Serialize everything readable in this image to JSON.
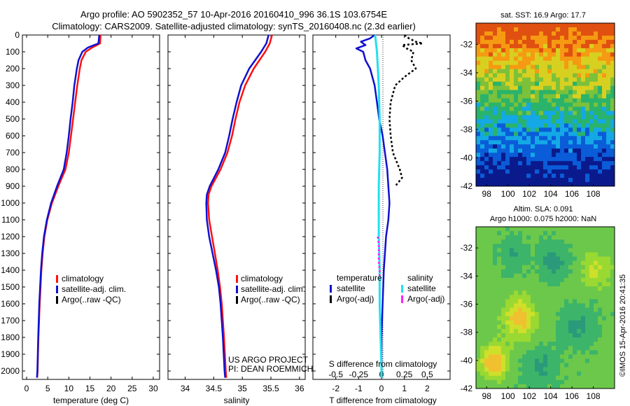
{
  "header": {
    "line1": "Argo profile: AO 5902352_57 10-Apr-2016 20160410_996 36.1S 103.6754E",
    "line2": "Climatology: CARS2009. Satellite-adjusted climatology: synTS_20160408.nc (2.3d earlier)"
  },
  "credits": {
    "project_line1": "US ARGO PROJECT",
    "project_line2": "PI: DEAN ROEMMICH",
    "imos": "©IMOS 15-Apr-2016 20:41:35"
  },
  "colors": {
    "climatology": "#ff1010",
    "satellite_adj": "#1010d0",
    "argo_raw": "#000000",
    "sal_satellite": "#20e0f0",
    "sal_argo_adj": "#ff20ff"
  },
  "chart_data": [
    {
      "type": "line",
      "panel": "temperature",
      "xlabel": "temperature (deg C)",
      "xlim": [
        -1,
        31.5
      ],
      "xticks": [
        0,
        5,
        10,
        15,
        20,
        25,
        30
      ],
      "ylim": [
        2050,
        0
      ],
      "yticks": [
        0,
        100,
        200,
        300,
        400,
        500,
        600,
        700,
        800,
        900,
        1000,
        1100,
        1200,
        1300,
        1400,
        1500,
        1600,
        1700,
        1800,
        1900,
        2000
      ],
      "legend": [
        "climatology",
        "satellite-adj. clim.",
        "Argo(..raw -QC)"
      ],
      "series": [
        {
          "name": "climatology",
          "depth": [
            0,
            50,
            75,
            100,
            150,
            200,
            300,
            400,
            500,
            600,
            700,
            800,
            900,
            1000,
            1100,
            1200,
            1300,
            1400,
            1500,
            1600,
            1800,
            2000,
            2040
          ],
          "values": [
            17.5,
            17.4,
            15.5,
            14.0,
            13.0,
            12.6,
            12.0,
            11.5,
            11.0,
            10.5,
            10.0,
            9.2,
            7.5,
            6.0,
            4.9,
            4.2,
            3.8,
            3.5,
            3.3,
            3.1,
            2.8,
            2.6,
            2.5
          ]
        },
        {
          "name": "satellite-adj. clim.",
          "depth": [
            0,
            50,
            75,
            100,
            150,
            200,
            300,
            400,
            500,
            600,
            700,
            800,
            900,
            1000,
            1100,
            1200,
            1300,
            1400,
            1500,
            1600,
            1800,
            2000,
            2040
          ],
          "values": [
            17.2,
            17.0,
            14.5,
            13.2,
            12.3,
            11.9,
            11.3,
            10.9,
            10.4,
            10.0,
            9.5,
            8.8,
            7.2,
            5.8,
            4.8,
            4.1,
            3.7,
            3.4,
            3.2,
            3.0,
            2.75,
            2.55,
            2.45
          ]
        }
      ]
    },
    {
      "type": "line",
      "panel": "salinity",
      "xlabel": "salinity",
      "xlim": [
        33.7,
        36.1
      ],
      "xticks": [
        34,
        34.5,
        35,
        35.5,
        36
      ],
      "ylim": [
        2050,
        0
      ],
      "legend": [
        "climatology",
        "satellite-adj. clim.",
        "Argo(..raw -QC)"
      ],
      "series": [
        {
          "name": "climatology",
          "depth": [
            0,
            50,
            100,
            200,
            300,
            400,
            500,
            600,
            700,
            800,
            900,
            950,
            1000,
            1100,
            1200,
            1300,
            1400,
            1500,
            1600,
            1800,
            2000,
            2040
          ],
          "values": [
            35.52,
            35.48,
            35.4,
            35.2,
            35.05,
            34.95,
            34.88,
            34.82,
            34.74,
            34.62,
            34.46,
            34.41,
            34.4,
            34.42,
            34.47,
            34.52,
            34.57,
            34.61,
            34.64,
            34.68,
            34.71,
            34.72
          ]
        },
        {
          "name": "satellite-adj. clim.",
          "depth": [
            0,
            50,
            100,
            200,
            300,
            400,
            500,
            600,
            700,
            800,
            900,
            950,
            1000,
            1100,
            1200,
            1300,
            1400,
            1500,
            1600,
            1800,
            2000,
            2040
          ],
          "values": [
            35.46,
            35.42,
            35.33,
            35.12,
            34.98,
            34.9,
            34.83,
            34.77,
            34.7,
            34.58,
            34.43,
            34.38,
            34.37,
            34.38,
            34.42,
            34.48,
            34.54,
            34.59,
            34.62,
            34.66,
            34.69,
            34.7
          ]
        }
      ]
    },
    {
      "type": "line",
      "panel": "difference",
      "xlabel": "T difference from climatology",
      "xlabel2": "S difference from climatology",
      "xlim": [
        -3,
        3
      ],
      "xticks": [
        -2,
        -1,
        0,
        1,
        2
      ],
      "xticks2": [
        "-0.5",
        "-0.25",
        "0",
        "0.25",
        "0.5"
      ],
      "ylim": [
        2050,
        0
      ],
      "legend_temperature_title": "temperature",
      "legend_salinity_title": "salinity",
      "legend": [
        "satellite",
        "Argo(-adj)",
        "satellite",
        "Argo(-adj)"
      ],
      "series": [
        {
          "name": "temperature satellite",
          "depth": [
            0,
            20,
            40,
            60,
            80,
            100,
            150,
            200,
            300,
            400,
            500,
            600,
            700,
            800,
            900,
            1000,
            1100,
            1200,
            1400,
            1600,
            1800,
            2000,
            2040
          ],
          "values": [
            -0.3,
            -0.5,
            -0.9,
            -0.7,
            -1.1,
            -0.8,
            -0.7,
            -0.5,
            -0.3,
            -0.2,
            -0.1,
            0.05,
            0.15,
            0.25,
            0.3,
            0.35,
            0.3,
            0.2,
            0.1,
            0.05,
            0.0,
            0.0,
            0.0
          ]
        },
        {
          "name": "temperature Argo(-adj)",
          "depth": [
            0,
            20,
            40,
            50,
            60,
            80,
            100,
            150,
            200,
            250,
            300,
            400,
            500,
            600,
            700,
            800,
            850,
            900
          ],
          "values": [
            1.0,
            1.2,
            1.5,
            1.8,
            0.9,
            1.1,
            1.4,
            1.3,
            1.5,
            1.0,
            0.6,
            0.4,
            0.35,
            0.4,
            0.5,
            0.8,
            0.9,
            0.6
          ]
        },
        {
          "name": "salinity satellite",
          "depth": [
            0,
            50,
            100,
            200,
            300,
            400,
            500,
            600,
            700,
            800,
            900,
            1000,
            1100,
            1200,
            1400,
            1600,
            1800,
            2000,
            2040
          ],
          "values": [
            -0.07,
            -0.06,
            -0.05,
            -0.04,
            -0.03,
            -0.025,
            -0.02,
            -0.02,
            -0.02,
            -0.025,
            -0.03,
            -0.03,
            -0.03,
            -0.03,
            -0.02,
            -0.02,
            -0.01,
            0.0,
            0.0
          ]
        },
        {
          "name": "salinity Argo(-adj)",
          "depth": [
            1200,
            1250,
            1350,
            1400,
            1450
          ],
          "values": [
            -0.04,
            -0.03,
            -0.03,
            -0.02,
            -0.02
          ]
        }
      ]
    },
    {
      "type": "heatmap",
      "panel": "sst_map",
      "title": "sat. SST: 16.9 Argo: 17.7",
      "xlim": [
        97,
        110
      ],
      "xticks": [
        98,
        100,
        102,
        104,
        106,
        108
      ],
      "ylim": [
        -42,
        -30.5
      ],
      "yticks": [
        -32,
        -34,
        -36,
        -38,
        -40,
        -42
      ]
    },
    {
      "type": "heatmap",
      "panel": "sla_map",
      "title_line1": "Altim. SLA: 0.091",
      "title_line2": "Argo h1000: 0.075 h2000: NaN",
      "xlim": [
        97,
        110
      ],
      "xticks": [
        98,
        100,
        102,
        104,
        106,
        108
      ],
      "ylim": [
        -42,
        -30.5
      ],
      "yticks": [
        -32,
        -34,
        -36,
        -38,
        -40,
        -42
      ]
    }
  ]
}
